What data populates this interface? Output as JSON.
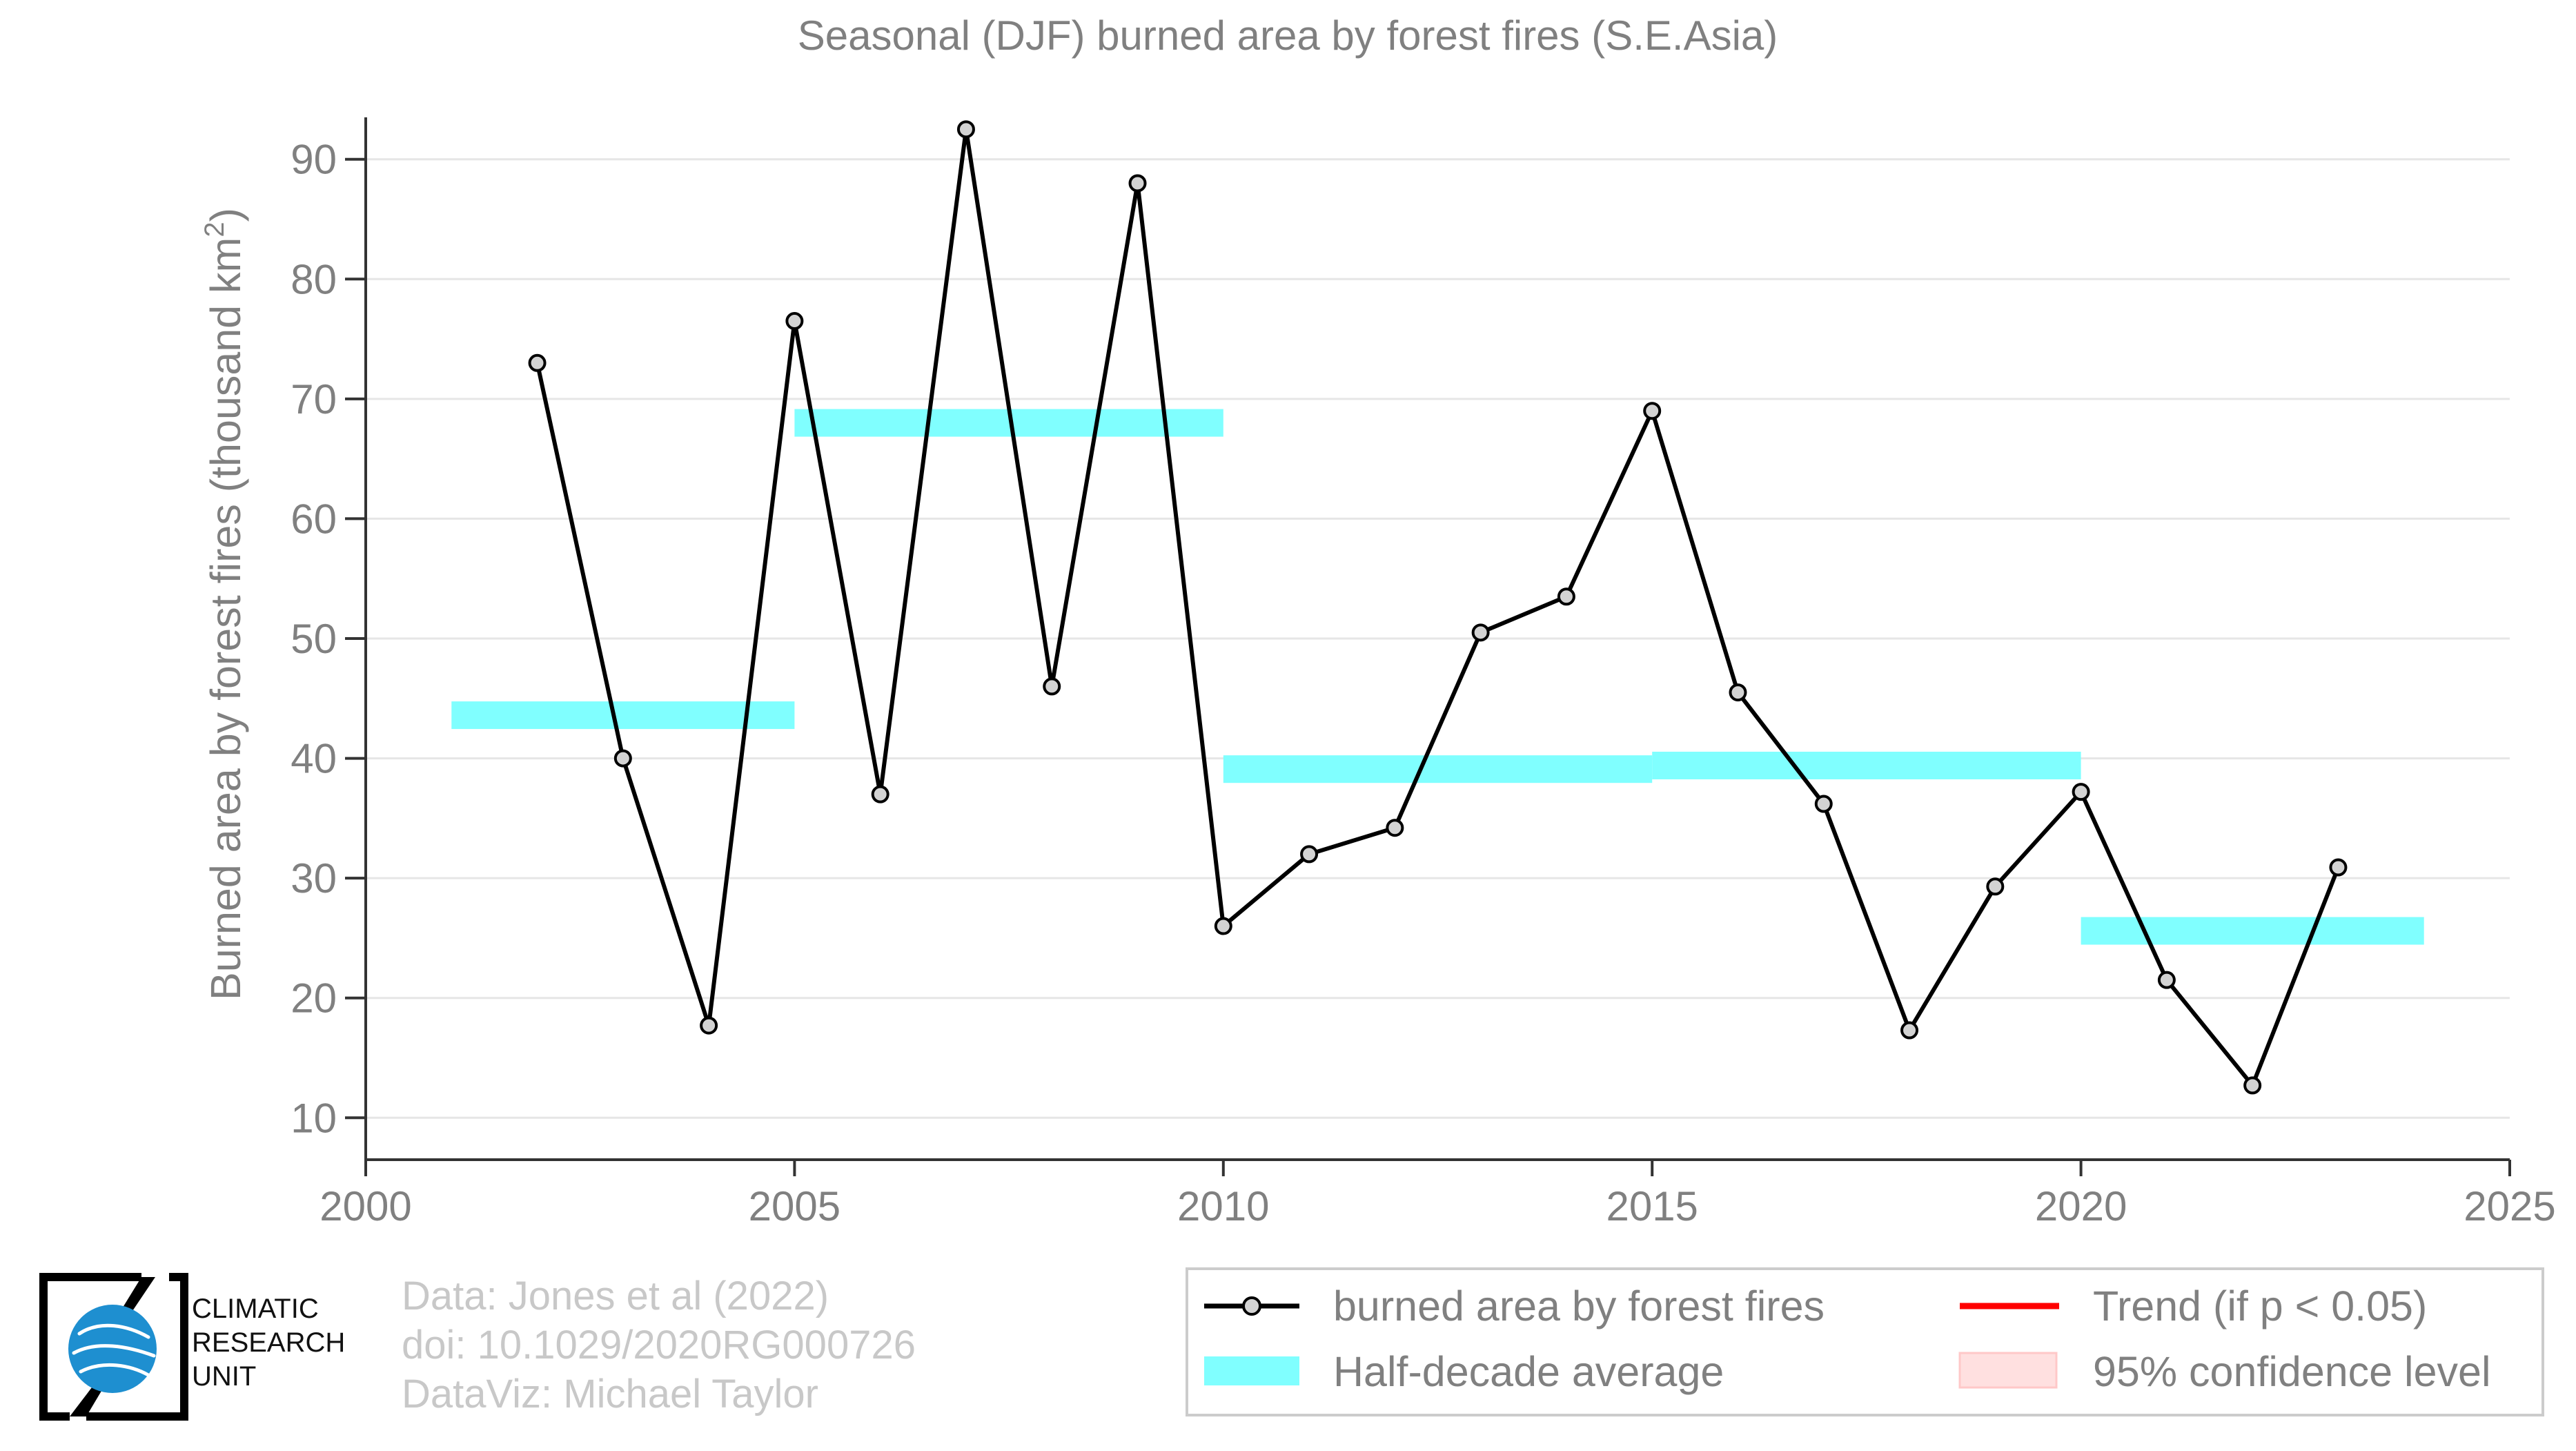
{
  "chart_data": {
    "type": "line",
    "title": "Seasonal (DJF) burned area by forest fires (S.E.Asia)",
    "xlabel": "",
    "ylabel": "Burned area by forest fires (thousand km",
    "ylabel_sup": "2",
    "ylabel_end": ")",
    "xlim": [
      2000,
      2025
    ],
    "ylim": [
      6.5,
      93.5
    ],
    "xticks": [
      2000,
      2005,
      2010,
      2015,
      2020,
      2025
    ],
    "yticks": [
      10,
      20,
      30,
      40,
      50,
      60,
      70,
      80,
      90
    ],
    "grid": true,
    "series": [
      {
        "name": "burned area by forest fires",
        "color": "#000000",
        "marker_fill": "#d3d3d3",
        "x": [
          2002,
          2003,
          2004,
          2005,
          2006,
          2007,
          2008,
          2009,
          2010,
          2011,
          2012,
          2013,
          2014,
          2015,
          2016,
          2017,
          2018,
          2019,
          2020,
          2021,
          2022,
          2023
        ],
        "values": [
          73,
          40,
          17.7,
          76.5,
          37,
          92.5,
          46,
          88,
          26,
          32,
          34.2,
          50.5,
          53.5,
          69,
          45.5,
          36.2,
          17.3,
          29.3,
          37.2,
          21.5,
          12.7,
          30.9
        ]
      }
    ],
    "half_decade_average": {
      "name": "Half-decade average",
      "color": "#80ffff",
      "segments": [
        {
          "x_start": 2001,
          "x_end": 2005,
          "value": 43.6
        },
        {
          "x_start": 2005,
          "x_end": 2010,
          "value": 68
        },
        {
          "x_start": 2010,
          "x_end": 2015,
          "value": 39.1
        },
        {
          "x_start": 2015,
          "x_end": 2020,
          "value": 39.4
        },
        {
          "x_start": 2020,
          "x_end": 2024,
          "value": 25.6
        }
      ]
    },
    "legend": {
      "position": "bottom-right",
      "entries": [
        {
          "label": "burned area by forest fires",
          "kind": "line-marker",
          "color": "#000000"
        },
        {
          "label": "Trend (if p < 0.05)",
          "kind": "line",
          "color": "#ff0000"
        },
        {
          "label": "Half-decade average",
          "kind": "band",
          "color": "#80ffff"
        },
        {
          "label": "95% confidence level",
          "kind": "band",
          "color": "#ffe0e0"
        }
      ]
    }
  },
  "credits": {
    "line1": "Data: Jones et al (2022)",
    "line2": "doi: 10.1029/2020RG000726",
    "line3": "DataViz: Michael Taylor"
  },
  "logo": {
    "line1": "CLIMATIC",
    "line2": "RESEARCH",
    "line3": "UNIT"
  },
  "colors": {
    "axis_text": "#808080",
    "grid": "#e6e6e6",
    "credits": "#c8c8c8",
    "logo_globe": "#1e8fd0"
  }
}
